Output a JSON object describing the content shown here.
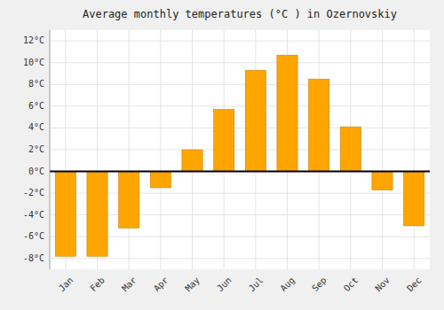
{
  "chart_data": {
    "type": "bar",
    "title": "Average monthly temperatures (°C ) in Ozernovskiy",
    "categories": [
      "Jan",
      "Feb",
      "Mar",
      "Apr",
      "May",
      "Jun",
      "Jul",
      "Aug",
      "Sep",
      "Oct",
      "Nov",
      "Dec"
    ],
    "values": [
      -7.8,
      -7.8,
      -5.2,
      -1.5,
      2.0,
      5.7,
      9.3,
      10.7,
      8.5,
      4.1,
      -1.7,
      -5.0
    ],
    "color": "#FFA500",
    "ylim": [
      -9,
      13
    ],
    "yticks": [
      {
        "value": -8,
        "label": "-8°C"
      },
      {
        "value": -6,
        "label": "-6°C"
      },
      {
        "value": -4,
        "label": "-4°C"
      },
      {
        "value": -2,
        "label": "-2°C"
      },
      {
        "value": 0,
        "label": "0°C"
      },
      {
        "value": 2,
        "label": "2°C"
      },
      {
        "value": 4,
        "label": "4°C"
      },
      {
        "value": 6,
        "label": "6°C"
      },
      {
        "value": 8,
        "label": "8°C"
      },
      {
        "value": 10,
        "label": "10°C"
      },
      {
        "value": 12,
        "label": "12°C"
      }
    ],
    "grid": true
  }
}
